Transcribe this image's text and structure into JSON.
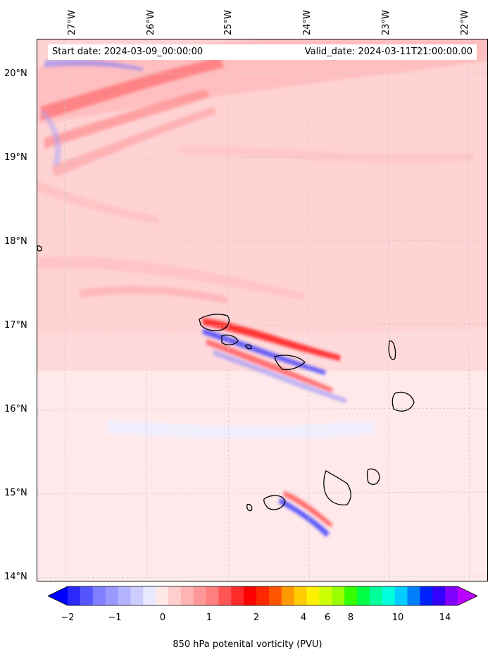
{
  "map": {
    "lon_labels": [
      "27°W",
      "26°W",
      "25°W",
      "24°W",
      "23°W",
      "22°W"
    ],
    "lat_labels": [
      "20°N",
      "19°N",
      "18°N",
      "17°N",
      "16°N",
      "15°N",
      "14°N"
    ]
  },
  "info": {
    "start_date": "Start date: 2024-03-09_00:00:00",
    "valid_date": "Valid_date: 2024-03-11T21:00:00.00"
  },
  "colorbar": {
    "ticks": [
      "−2",
      "−1",
      "0",
      "1",
      "2",
      "4",
      "6",
      "8",
      "10",
      "14"
    ],
    "label": "850 hPa potenital vorticity (PVU)",
    "colors": [
      "#0000ff",
      "#2a2aff",
      "#5555ff",
      "#7f7fff",
      "#9999ff",
      "#b3b3ff",
      "#ccccff",
      "#e8e8ff",
      "#ffe8e8",
      "#ffcccc",
      "#ffb3b3",
      "#ff9999",
      "#ff7f7f",
      "#ff5555",
      "#ff2a2a",
      "#ff0000",
      "#ff2800",
      "#ff5500",
      "#ff9900",
      "#ffcc00",
      "#fff000",
      "#ccff00",
      "#99ff00",
      "#33ff00",
      "#00ff44",
      "#00ff99",
      "#00ffdd",
      "#00ccff",
      "#0080ff",
      "#0022ff",
      "#3300ff",
      "#8000ff",
      "#bb00ff"
    ]
  }
}
